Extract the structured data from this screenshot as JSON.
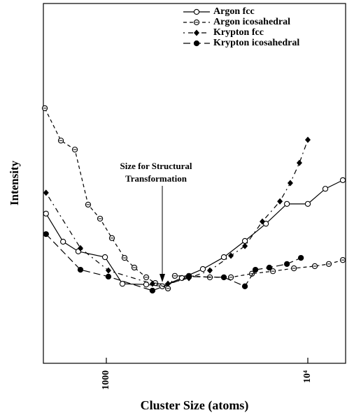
{
  "chart_data": {
    "type": "line",
    "xlabel": "Cluster Size (atoms)",
    "ylabel": "Intensity",
    "xlog": true,
    "xlim": [
      487,
      15400
    ],
    "ylim": [
      0,
      100
    ],
    "xticks": [
      1000,
      {
        "value": 10000,
        "label": "10⁴"
      }
    ],
    "annotation": {
      "lines": [
        "Size for Structural",
        "Transformation"
      ],
      "x": 1896
    },
    "legend": "top-right",
    "series": [
      {
        "name": "Argon fcc",
        "color": "#000000",
        "marker": "open-circle",
        "dash": "solid",
        "x": [
          502,
          610,
          726,
          985,
          1202,
          1578,
          1896,
          2371,
          3014,
          3832,
          4873,
          6195,
          7876,
          10000,
          12215,
          14919
        ],
        "values": [
          41.6,
          33.8,
          31.1,
          29.5,
          22.1,
          21.9,
          21.4,
          23.7,
          26.2,
          29.5,
          34.0,
          38.8,
          44.3,
          44.3,
          48.5,
          50.9
        ]
      },
      {
        "name": "Argon icosahedral",
        "color": "#000000",
        "marker": "barred-circle",
        "dash": "dashed",
        "x": [
          495,
          595,
          698,
          812,
          931,
          1066,
          1231,
          1377,
          1578,
          1750,
          2022,
          2188,
          2569,
          3265,
          4152,
          5279,
          6711,
          8532,
          10833,
          12713,
          14919
        ],
        "values": [
          70.9,
          61.9,
          59.4,
          44.1,
          40.2,
          34.8,
          29.3,
          26.6,
          23.9,
          22.3,
          20.8,
          24.3,
          24.3,
          23.9,
          23.9,
          24.9,
          25.6,
          26.4,
          27.0,
          27.6,
          28.7
        ]
      },
      {
        "name": "Krypton fcc",
        "color": "#000000",
        "marker": "diamond",
        "dash": "dashdot",
        "x": [
          502,
          744,
          1024,
          1694,
          2022,
          2569,
          3265,
          4152,
          4873,
          5948,
          7270,
          8185,
          9083,
          10000
        ],
        "values": [
          47.4,
          32.0,
          25.8,
          22.1,
          22.1,
          23.7,
          25.8,
          29.9,
          32.6,
          39.4,
          45.0,
          50.1,
          55.7,
          62.1
        ]
      },
      {
        "name": "Krypton icosahedral",
        "color": "#000000",
        "marker": "filled-circle",
        "dash": "longdash",
        "x": [
          502,
          744,
          1024,
          1694,
          2569,
          3832,
          4873,
          5495,
          6442,
          7876,
          9243
        ],
        "values": [
          35.9,
          26.0,
          24.1,
          20.2,
          24.1,
          23.9,
          21.4,
          26.0,
          26.6,
          27.6,
          29.3
        ]
      }
    ]
  }
}
